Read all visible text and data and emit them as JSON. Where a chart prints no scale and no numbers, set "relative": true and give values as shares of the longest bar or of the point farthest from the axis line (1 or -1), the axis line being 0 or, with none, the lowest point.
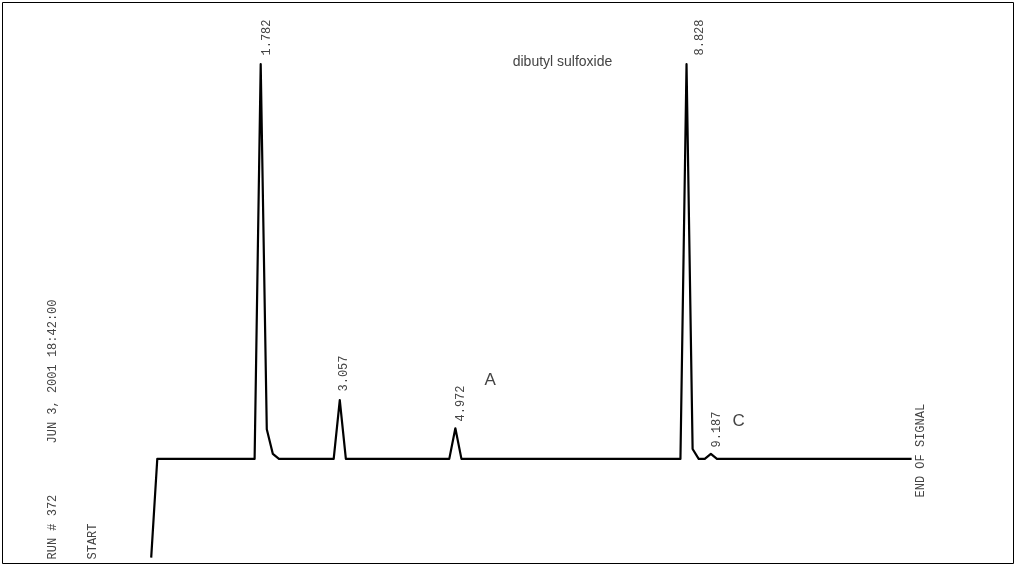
{
  "chart_data": {
    "type": "line",
    "relative": true,
    "categories": [
      null,
      null,
      null,
      null,
      null,
      null,
      null,
      null,
      null,
      null,
      null,
      null,
      null,
      null,
      null,
      null,
      null,
      null,
      null,
      null,
      null,
      null,
      null,
      null,
      null,
      null,
      null,
      null,
      null,
      null,
      null,
      null,
      null,
      null,
      null,
      null,
      null,
      null,
      null,
      null,
      null,
      null,
      null,
      null,
      null,
      null,
      null,
      null,
      null,
      null,
      null,
      null,
      null,
      null,
      null,
      null,
      null,
      null,
      null,
      null,
      null,
      null,
      null,
      null,
      null,
      null,
      null,
      null,
      null,
      null,
      null,
      null,
      null,
      null,
      null,
      null,
      null,
      null,
      null,
      null,
      null,
      null,
      null,
      null,
      null,
      null,
      null,
      null,
      null,
      null,
      null,
      null,
      null,
      null,
      null,
      null,
      null,
      null,
      null,
      null,
      null,
      null,
      null,
      null,
      null,
      null,
      null,
      null,
      null,
      null,
      null,
      null,
      null,
      null,
      null,
      null,
      null,
      null,
      null,
      null,
      null,
      null,
      null,
      null,
      null,
      null
    ],
    "series": [
      {
        "color": "#000000",
        "values": [
          0,
          0.2,
          0.2,
          0.2,
          0.2,
          0.2,
          0.2,
          0.2,
          0.2,
          0.2,
          0.2,
          0.2,
          0.2,
          0.2,
          0.2,
          0.2,
          0.2,
          0.2,
          1.0,
          0.26,
          0.21,
          0.2,
          0.2,
          0.2,
          0.2,
          0.2,
          0.2,
          0.2,
          0.2,
          0.2,
          0.2,
          0.319,
          0.2,
          0.2,
          0.2,
          0.2,
          0.2,
          0.2,
          0.2,
          0.2,
          0.2,
          0.2,
          0.2,
          0.2,
          0.2,
          0.2,
          0.2,
          0.2,
          0.2,
          0.2,
          0.262,
          0.2,
          0.2,
          0.2,
          0.2,
          0.2,
          0.2,
          0.2,
          0.2,
          0.2,
          0.2,
          0.2,
          0.2,
          0.2,
          0.2,
          0.2,
          0.2,
          0.2,
          0.2,
          0.2,
          0.2,
          0.2,
          0.2,
          0.2,
          0.2,
          0.2,
          0.2,
          0.2,
          0.2,
          0.2,
          0.2,
          0.2,
          0.2,
          0.2,
          0.2,
          0.2,
          0.2,
          0.2,
          1.0,
          0.22,
          0.2,
          0.2,
          0.21,
          0.2,
          0.2,
          0.2,
          0.2,
          0.2,
          0.2,
          0.2,
          0.2,
          0.2,
          0.2,
          0.2,
          0.2,
          0.2,
          0.2,
          0.2,
          0.2,
          0.2,
          0.2,
          0.2,
          0.2,
          0.2,
          0.2,
          0.2,
          0.2,
          0.2,
          0.2,
          0.2,
          0.2,
          0.2,
          0.2,
          0.2,
          0.2,
          0.2
        ]
      }
    ],
    "annotations": [
      "RUN # 372",
      "JUN 3, 2001 18:42:00",
      "dibutyl sulfoxide",
      "START",
      "1.782",
      "3.057",
      "4.972",
      "A",
      "8.828",
      "9.187",
      "C",
      "END OF SIGNAL"
    ]
  }
}
